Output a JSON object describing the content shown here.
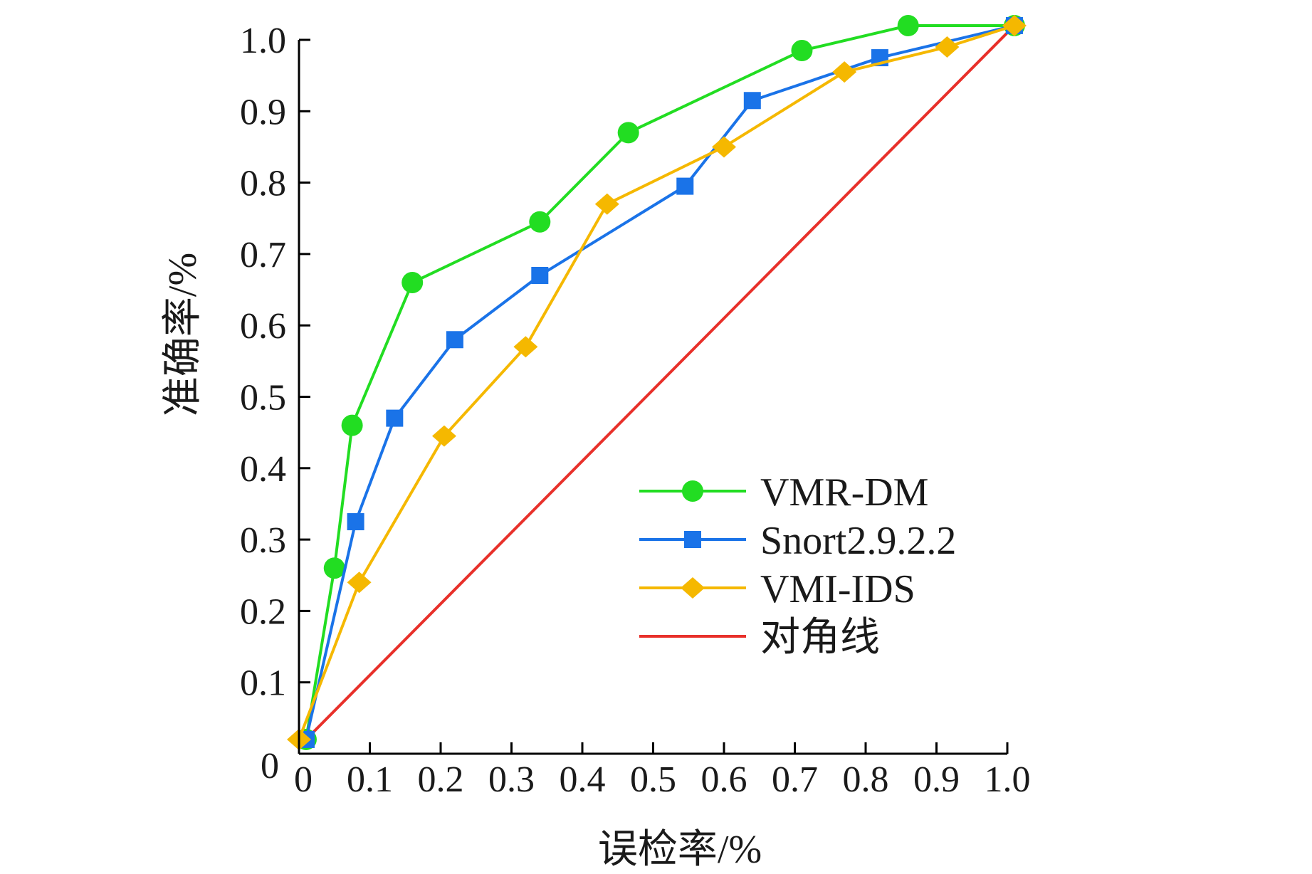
{
  "chart_data": {
    "type": "line",
    "title": "",
    "xlabel": "误检率/%",
    "ylabel": "准确率/%",
    "xlim": [
      0,
      1.0
    ],
    "ylim": [
      0,
      1.0
    ],
    "x_ticks": [
      "0",
      "0.1",
      "0.2",
      "0.3",
      "0.4",
      "0.5",
      "0.6",
      "0.7",
      "0.8",
      "0.9",
      "1.0"
    ],
    "y_ticks": [
      "0",
      "0.1",
      "0.2",
      "0.3",
      "0.4",
      "0.5",
      "0.6",
      "0.7",
      "0.8",
      "0.9",
      "1.0"
    ],
    "legend_position": "center-right",
    "series": [
      {
        "name": "VMR-DM",
        "color": "#22dd22",
        "marker": "circle",
        "x": [
          0.01,
          0.05,
          0.075,
          0.16,
          0.34,
          0.465,
          0.71,
          0.86,
          1.01
        ],
        "y": [
          0.02,
          0.26,
          0.46,
          0.66,
          0.745,
          0.87,
          0.985,
          1.02,
          1.02
        ]
      },
      {
        "name": "Snort2.9.2.2",
        "color": "#1a73e8",
        "marker": "square",
        "x": [
          0.01,
          0.08,
          0.135,
          0.22,
          0.34,
          0.545,
          0.64,
          0.82,
          1.01
        ],
        "y": [
          0.02,
          0.325,
          0.47,
          0.58,
          0.67,
          0.795,
          0.915,
          0.975,
          1.02
        ]
      },
      {
        "name": "VMI-IDS",
        "color": "#f5b800",
        "marker": "diamond",
        "x": [
          0.0,
          0.085,
          0.205,
          0.32,
          0.435,
          0.6,
          0.77,
          0.915,
          1.01
        ],
        "y": [
          0.02,
          0.24,
          0.445,
          0.57,
          0.77,
          0.85,
          0.955,
          0.99,
          1.02
        ]
      },
      {
        "name": "对角线",
        "color": "#e8302a",
        "marker": "none",
        "x": [
          0.01,
          1.01
        ],
        "y": [
          0.02,
          1.02
        ]
      }
    ]
  }
}
